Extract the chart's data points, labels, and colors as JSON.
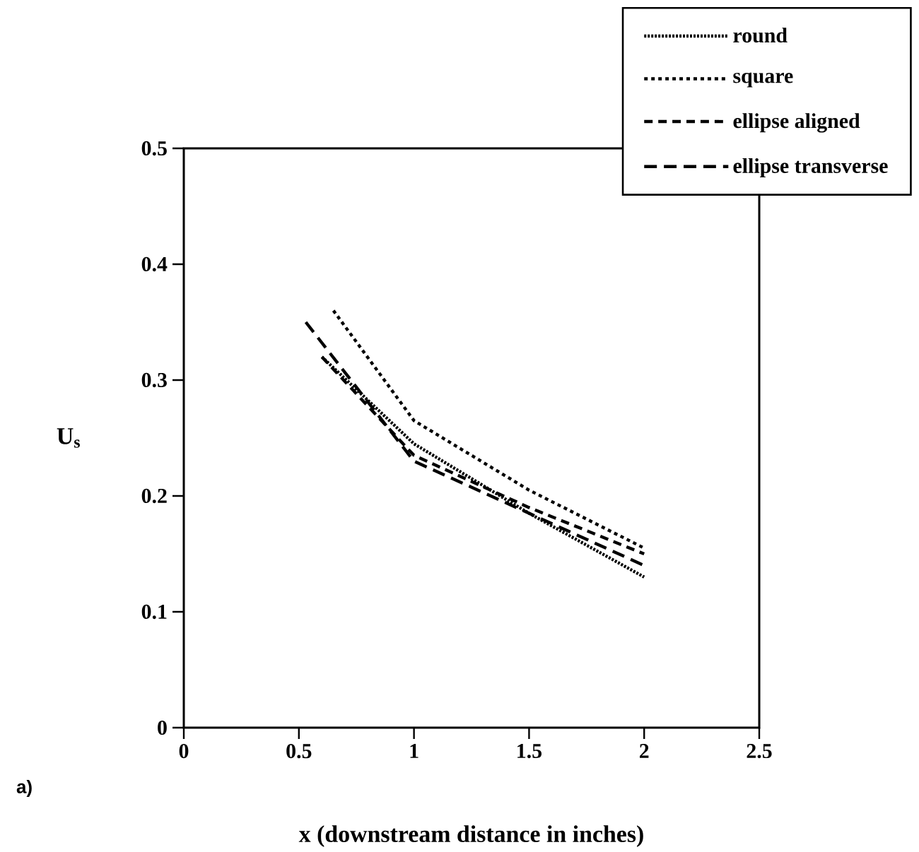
{
  "chart_data": {
    "type": "line",
    "xlabel": "x (downstream distance in inches)",
    "ylabel": "U$_{s}$",
    "annotations": [
      "a)"
    ],
    "series": [
      {
        "name": "round",
        "color": "#000000",
        "line_style": "dotted",
        "x": [
          0.6,
          1,
          1.5,
          2
        ],
        "values": [
          0.32,
          0.245,
          0.185,
          0.13
        ]
      },
      {
        "name": "square",
        "color": "#000000",
        "line_style": "dotted",
        "x": [
          0.65,
          1,
          1.5,
          2
        ],
        "values": [
          0.36,
          0.265,
          0.205,
          0.155
        ]
      },
      {
        "name": "ellipse aligned",
        "color": "#000000",
        "line_style": "dashed",
        "x": [
          0.6,
          1,
          1.5,
          2
        ],
        "values": [
          0.32,
          0.235,
          0.19,
          0.15
        ]
      },
      {
        "name": "ellipse transverse",
        "color": "#000000",
        "line_style": "dashed",
        "x": [
          0.53,
          1,
          1.5,
          2
        ],
        "values": [
          0.35,
          0.23,
          0.185,
          0.14
        ]
      }
    ],
    "xlim": [
      0,
      2.5
    ],
    "ylim": [
      0,
      0.5
    ],
    "xticks": [
      0,
      0.5,
      1,
      1.5,
      2,
      2.5
    ],
    "yticks": [
      0,
      0.1,
      0.2,
      0.3,
      0.4,
      0.5
    ],
    "grid": false,
    "legend": "top right",
    "marker": "none"
  }
}
